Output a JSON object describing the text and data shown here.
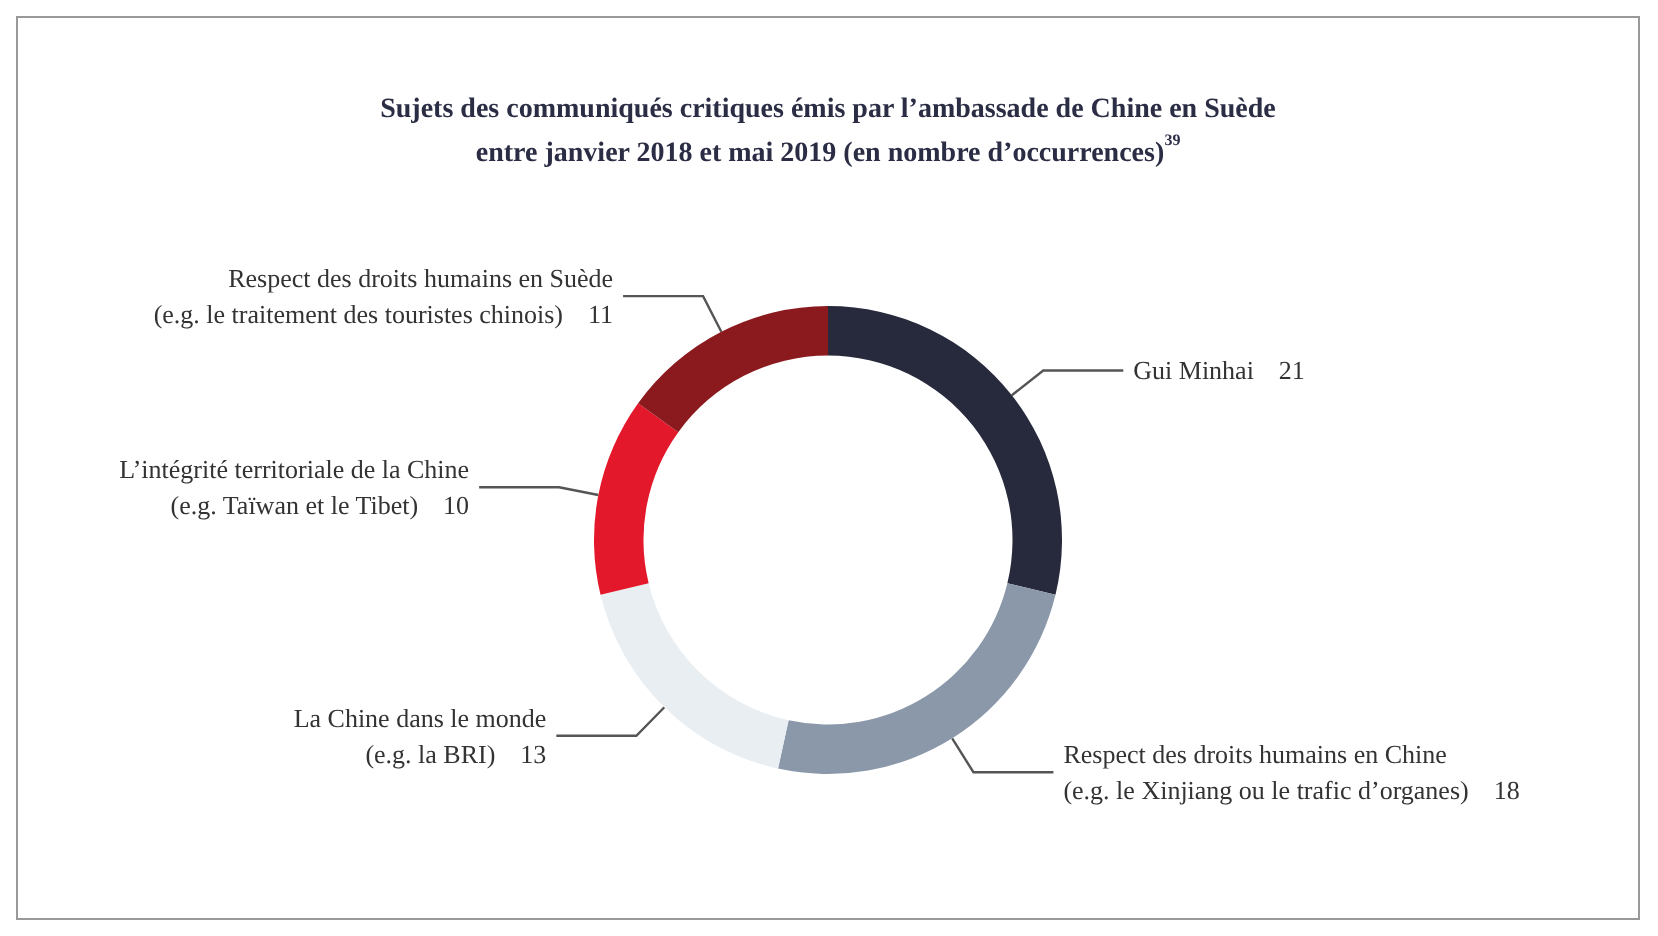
{
  "chart_data": {
    "type": "donut",
    "title": "Sujets des communiqués critiques émis par l’ambassade de Chine en Suède\nentre janvier 2018 et mai 2019 (en nombre d’occurrences)$^{39}$",
    "categories": [
      "Gui Minhai",
      "Respect des droits humains en Chine\n(e.g. le Xinjiang ou le trafic d’organes)",
      "La Chine dans le monde\n(e.g. la BRI)",
      "L’intégrité territoriale de la Chine\n(e.g. Taïwan et le Tibet)",
      "Respect des droits humains en Suède\n(e.g. le traitement des touristes chinois)"
    ],
    "values": [
      21,
      18,
      13,
      10,
      11
    ],
    "colors": [
      "#272a3c",
      "#8a98aa",
      "#e9eef2",
      "#e3182b",
      "#8b1a1f"
    ],
    "data_labels": true,
    "legend": false
  }
}
